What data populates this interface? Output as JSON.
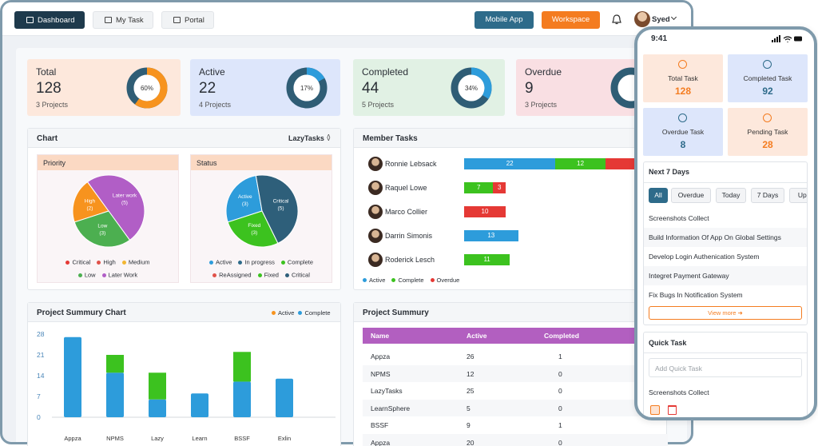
{
  "nav": {
    "tabs": [
      "Dashboard",
      "My Task",
      "Portal"
    ],
    "buttons": [
      "Mobile App",
      "Workspace"
    ],
    "user": "Syed"
  },
  "stats": [
    {
      "title": "Total",
      "value": 128,
      "subtitle": "3 Projects",
      "percent": 60,
      "percent_label": "60%"
    },
    {
      "title": "Active",
      "value": 22,
      "subtitle": "4 Projects",
      "percent": 17,
      "percent_label": "17%"
    },
    {
      "title": "Completed",
      "value": 44,
      "subtitle": "5 Projects",
      "percent": 34,
      "percent_label": "34%"
    },
    {
      "title": "Overdue",
      "value": 9,
      "subtitle": "3 Projects"
    }
  ],
  "chart_panel": {
    "title": "Chart",
    "project": "LazyTasks",
    "pies": [
      {
        "title": "Priority",
        "slices": [
          {
            "name": "High",
            "value": 2,
            "value_label": "(2)",
            "color": "#f7931e"
          },
          {
            "name": "Later work",
            "value": 5,
            "value_label": "(5)",
            "color": "#b15ec6"
          },
          {
            "name": "Low",
            "value": 3,
            "value_label": "(3)",
            "color": "#4caf50"
          }
        ],
        "legend": [
          {
            "name": "Critical",
            "color": "#e53935"
          },
          {
            "name": "High",
            "color": "#e0524a"
          },
          {
            "name": "Medium",
            "color": "#f2b632"
          },
          {
            "name": "Low",
            "color": "#4caf50"
          },
          {
            "name": "Later Work",
            "color": "#b15ec6"
          }
        ]
      },
      {
        "title": "Status",
        "slices": [
          {
            "name": "Active",
            "value": 3,
            "value_label": "(3)",
            "color": "#2d9cdb"
          },
          {
            "name": "Critical",
            "value": 5,
            "value_label": "(5)",
            "color": "#2e5f7a"
          },
          {
            "name": "Fixed",
            "value": 3,
            "value_label": "(3)",
            "color": "#3cc21f"
          }
        ],
        "legend": [
          {
            "name": "Active",
            "color": "#2d9cdb"
          },
          {
            "name": "In progress",
            "color": "#2e6b8a"
          },
          {
            "name": "Complete",
            "color": "#3cc21f"
          },
          {
            "name": "ReAssigned",
            "color": "#e0524a"
          },
          {
            "name": "Fixed",
            "color": "#3cc21f"
          },
          {
            "name": "Critical",
            "color": "#2e5f7a"
          }
        ]
      }
    ]
  },
  "member_tasks": {
    "title": "Member Tasks",
    "legend": [
      {
        "name": "Active",
        "color": "#2d9cdb"
      },
      {
        "name": "Complete",
        "color": "#3cc21f"
      },
      {
        "name": "Overdue",
        "color": "#e53935"
      }
    ],
    "members": [
      {
        "name": "Ronnie Lebsack",
        "values": [
          22,
          12,
          19
        ]
      },
      {
        "name": "Raquel Lowe",
        "values": [
          null,
          7,
          3
        ]
      },
      {
        "name": "Marco Collier",
        "values": [
          null,
          null,
          10
        ]
      },
      {
        "name": "Darrin Simonis",
        "values": [
          13,
          null,
          null
        ]
      },
      {
        "name": "Roderick Lesch",
        "values": [
          null,
          11,
          null
        ]
      }
    ]
  },
  "summary_chart": {
    "title": "Project Summury Chart",
    "ylim": [
      0,
      28
    ],
    "yticks": [
      0,
      7,
      14,
      21,
      28
    ],
    "categories": [
      "Appza",
      "NPMS",
      "Lazy",
      "Learn",
      "BSSF",
      "Exlin"
    ],
    "series": [
      {
        "name": "Active",
        "dot": "#f7931e",
        "color": "#2d9cdb",
        "values": [
          27,
          15,
          6,
          8,
          12,
          13
        ]
      },
      {
        "name": "Complete",
        "dot": "#2d9cdb",
        "color": "#3cc21f",
        "values": [
          0,
          6,
          9,
          0,
          10,
          0
        ]
      }
    ]
  },
  "summary_table": {
    "title": "Project Summury",
    "columns": [
      "Name",
      "Active",
      "Completed"
    ],
    "rows": [
      [
        "Appza",
        26,
        1
      ],
      [
        "NPMS",
        12,
        0
      ],
      [
        "LazyTasks",
        25,
        0
      ],
      [
        "LearnSphere",
        5,
        0
      ],
      [
        "BSSF",
        9,
        1
      ],
      [
        "Appza",
        20,
        0
      ]
    ]
  },
  "mobile": {
    "time": "9:41",
    "cards": [
      {
        "label": "Total Task",
        "value": 128
      },
      {
        "label": "Completed Task",
        "value": 92
      },
      {
        "label": "Overdue Task",
        "value": 8
      },
      {
        "label": "Pending Task",
        "value": 28
      }
    ],
    "next7": {
      "title": "Next 7 Days",
      "filters": [
        "All",
        "Overdue",
        "Today",
        "7 Days",
        "Upcoming"
      ],
      "tasks": [
        "Screenshots Collect",
        "Build Information Of App On Global Settings",
        "Develop Login Authenication System",
        "Integret Payment Gateway",
        "Fix Bugs In Notification System"
      ],
      "view_more": "View more"
    },
    "quick": {
      "title": "Quick Task",
      "placeholder": "Add Quick Task",
      "tasks": [
        "Screenshots Collect"
      ]
    }
  }
}
